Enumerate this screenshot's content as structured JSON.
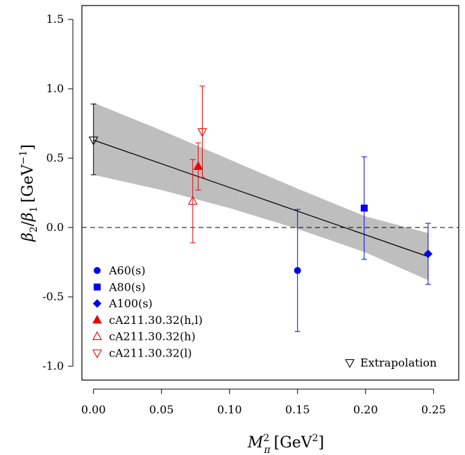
{
  "chart_data": {
    "type": "scatter",
    "xlabel": "M_π² [GeV²]",
    "ylabel": "β₂/β₁ [GeV⁻¹]",
    "xlim": [
      -0.0085,
      0.2685
    ],
    "ylim": [
      -1.1,
      1.6
    ],
    "x_ticks": [
      0.0,
      0.05,
      0.1,
      0.15,
      0.2,
      0.25
    ],
    "x_tick_labels": [
      "0.00",
      "0.05",
      "0.10",
      "0.15",
      "0.20",
      "0.25"
    ],
    "y_ticks": [
      -1.0,
      -0.5,
      0.0,
      0.5,
      1.0,
      1.5
    ],
    "y_tick_labels": [
      "-1.0",
      "-0.5",
      "0.0",
      "0.5",
      "1.0",
      "1.5"
    ],
    "grid": false,
    "reference_line": {
      "y": 0.0,
      "style": "dashed"
    },
    "fit": {
      "line": {
        "x": [
          0.0,
          0.246
        ],
        "y": [
          0.63,
          -0.21
        ]
      },
      "band": {
        "x": [
          0.0,
          0.05,
          0.1,
          0.15,
          0.2,
          0.246
        ],
        "upper": [
          0.9,
          0.7,
          0.49,
          0.28,
          0.08,
          -0.04
        ],
        "lower": [
          0.38,
          0.27,
          0.14,
          -0.01,
          -0.18,
          -0.38
        ]
      },
      "band_color": "#bebebe"
    },
    "series": [
      {
        "name": "A60(s)",
        "marker": "circle",
        "filled": true,
        "color": "#0000ee",
        "points": [
          {
            "x": 0.15,
            "y": -0.31,
            "err_low": -0.75,
            "err_high": 0.13
          }
        ]
      },
      {
        "name": "A80(s)",
        "marker": "square",
        "filled": true,
        "color": "#0000ee",
        "points": [
          {
            "x": 0.199,
            "y": 0.14,
            "err_low": -0.23,
            "err_high": 0.51
          }
        ]
      },
      {
        "name": "A100(s)",
        "marker": "diamond",
        "filled": true,
        "color": "#0000ee",
        "points": [
          {
            "x": 0.246,
            "y": -0.19,
            "err_low": -0.41,
            "err_high": 0.03
          }
        ]
      },
      {
        "name": "cA211.30.32(h,l)",
        "marker": "triangle-up",
        "filled": true,
        "color": "#ee0000",
        "points": [
          {
            "x": 0.077,
            "y": 0.44,
            "err_low": 0.27,
            "err_high": 0.61
          }
        ]
      },
      {
        "name": "cA211.30.32(h)",
        "marker": "triangle-up",
        "filled": false,
        "color": "#ee0000",
        "points": [
          {
            "x": 0.073,
            "y": 0.19,
            "err_low": -0.11,
            "err_high": 0.49
          }
        ]
      },
      {
        "name": "cA211.30.32(l)",
        "marker": "triangle-down",
        "filled": false,
        "color": "#ee0000",
        "points": [
          {
            "x": 0.08,
            "y": 0.69,
            "err_low": 0.36,
            "err_high": 1.02
          }
        ]
      },
      {
        "name": "Extrapolation",
        "marker": "triangle-down",
        "filled": false,
        "color": "#000000",
        "points": [
          {
            "x": 0.0,
            "y": 0.63,
            "err_low": 0.38,
            "err_high": 0.89
          }
        ]
      }
    ],
    "legend": {
      "placement": "bottom-left",
      "entries": [
        "A60(s)",
        "A80(s)",
        "A100(s)",
        "cA211.30.32(h,l)",
        "cA211.30.32(h)",
        "cA211.30.32(l)"
      ],
      "extra_placement": "bottom-right",
      "extra_entries": [
        "Extrapolation"
      ]
    }
  }
}
